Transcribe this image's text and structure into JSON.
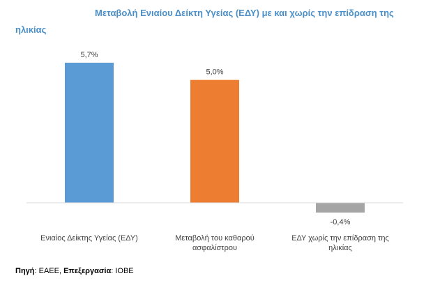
{
  "title_line1": "Μεταβολή Ενιαίου Δείκτη Υγείας (ΕΔΥ) με και χωρίς την επίδραση της",
  "title_line2": "ηλικίας",
  "source": {
    "label1": "Πηγή",
    "text1": ": ΕΑΕΕ, ",
    "label2": "Επεξεργασία",
    "text2": ": ΙΟΒΕ"
  },
  "chart_data": {
    "type": "bar",
    "title": "Μεταβολή Ενιαίου Δείκτη Υγείας (ΕΔΥ) με και χωρίς την επίδραση της ηλικίας",
    "categories": [
      [
        "Ενιαίος Δείκτης Υγείας (ΕΔΥ)"
      ],
      [
        "Μεταβολή του καθαρού",
        "ασφαλίστρου"
      ],
      [
        "ΕΔΥ χωρίς την επίδραση της",
        "ηλικίας"
      ]
    ],
    "values": [
      5.7,
      5.0,
      -0.4
    ],
    "data_labels": [
      "5,7%",
      "5,0%",
      "-0,4%"
    ],
    "colors": [
      "#5b9bd5",
      "#ed7d31",
      "#a5a5a5"
    ],
    "axis_color": "#d9d9d9",
    "grid": false,
    "legend": "none"
  }
}
